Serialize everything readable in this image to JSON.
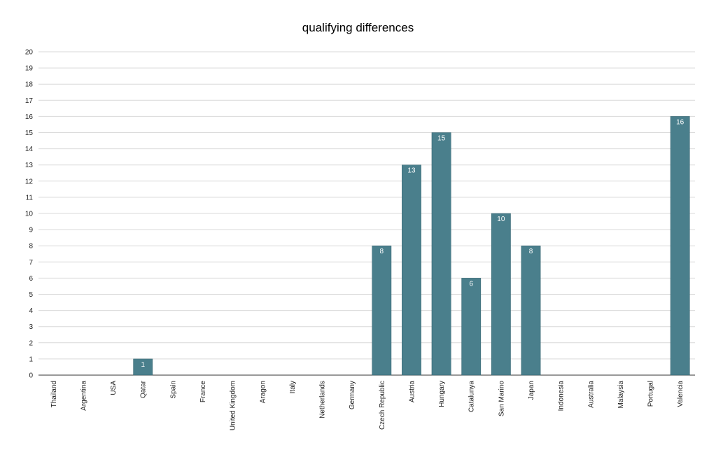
{
  "chart_data": {
    "type": "bar",
    "title": "qualifying differences",
    "xlabel": "",
    "ylabel": "",
    "categories": [
      "Thailand",
      "Argentina",
      "USA",
      "Qatar",
      "Spain",
      "France",
      "United Kingdom",
      "Aragon",
      "Italy",
      "Netherlands",
      "Germany",
      "Czech Republic",
      "Austria",
      "Hungary",
      "Catalunya",
      "San Marino",
      "Japan",
      "Indonesia",
      "Australia",
      "Malaysia",
      "Portugal",
      "Valencia"
    ],
    "values": [
      0,
      0,
      0,
      1,
      0,
      0,
      0,
      0,
      0,
      0,
      0,
      8,
      13,
      15,
      6,
      10,
      8,
      0,
      0,
      0,
      0,
      16
    ],
    "ylim": [
      0,
      20
    ],
    "yticks": [
      0,
      1,
      2,
      3,
      4,
      5,
      6,
      7,
      8,
      9,
      10,
      11,
      12,
      13,
      14,
      15,
      16,
      17,
      18,
      19,
      20
    ],
    "grid": true,
    "legend": "none",
    "bar_color": "#4a7f8c",
    "label_color": "#ffffff"
  }
}
